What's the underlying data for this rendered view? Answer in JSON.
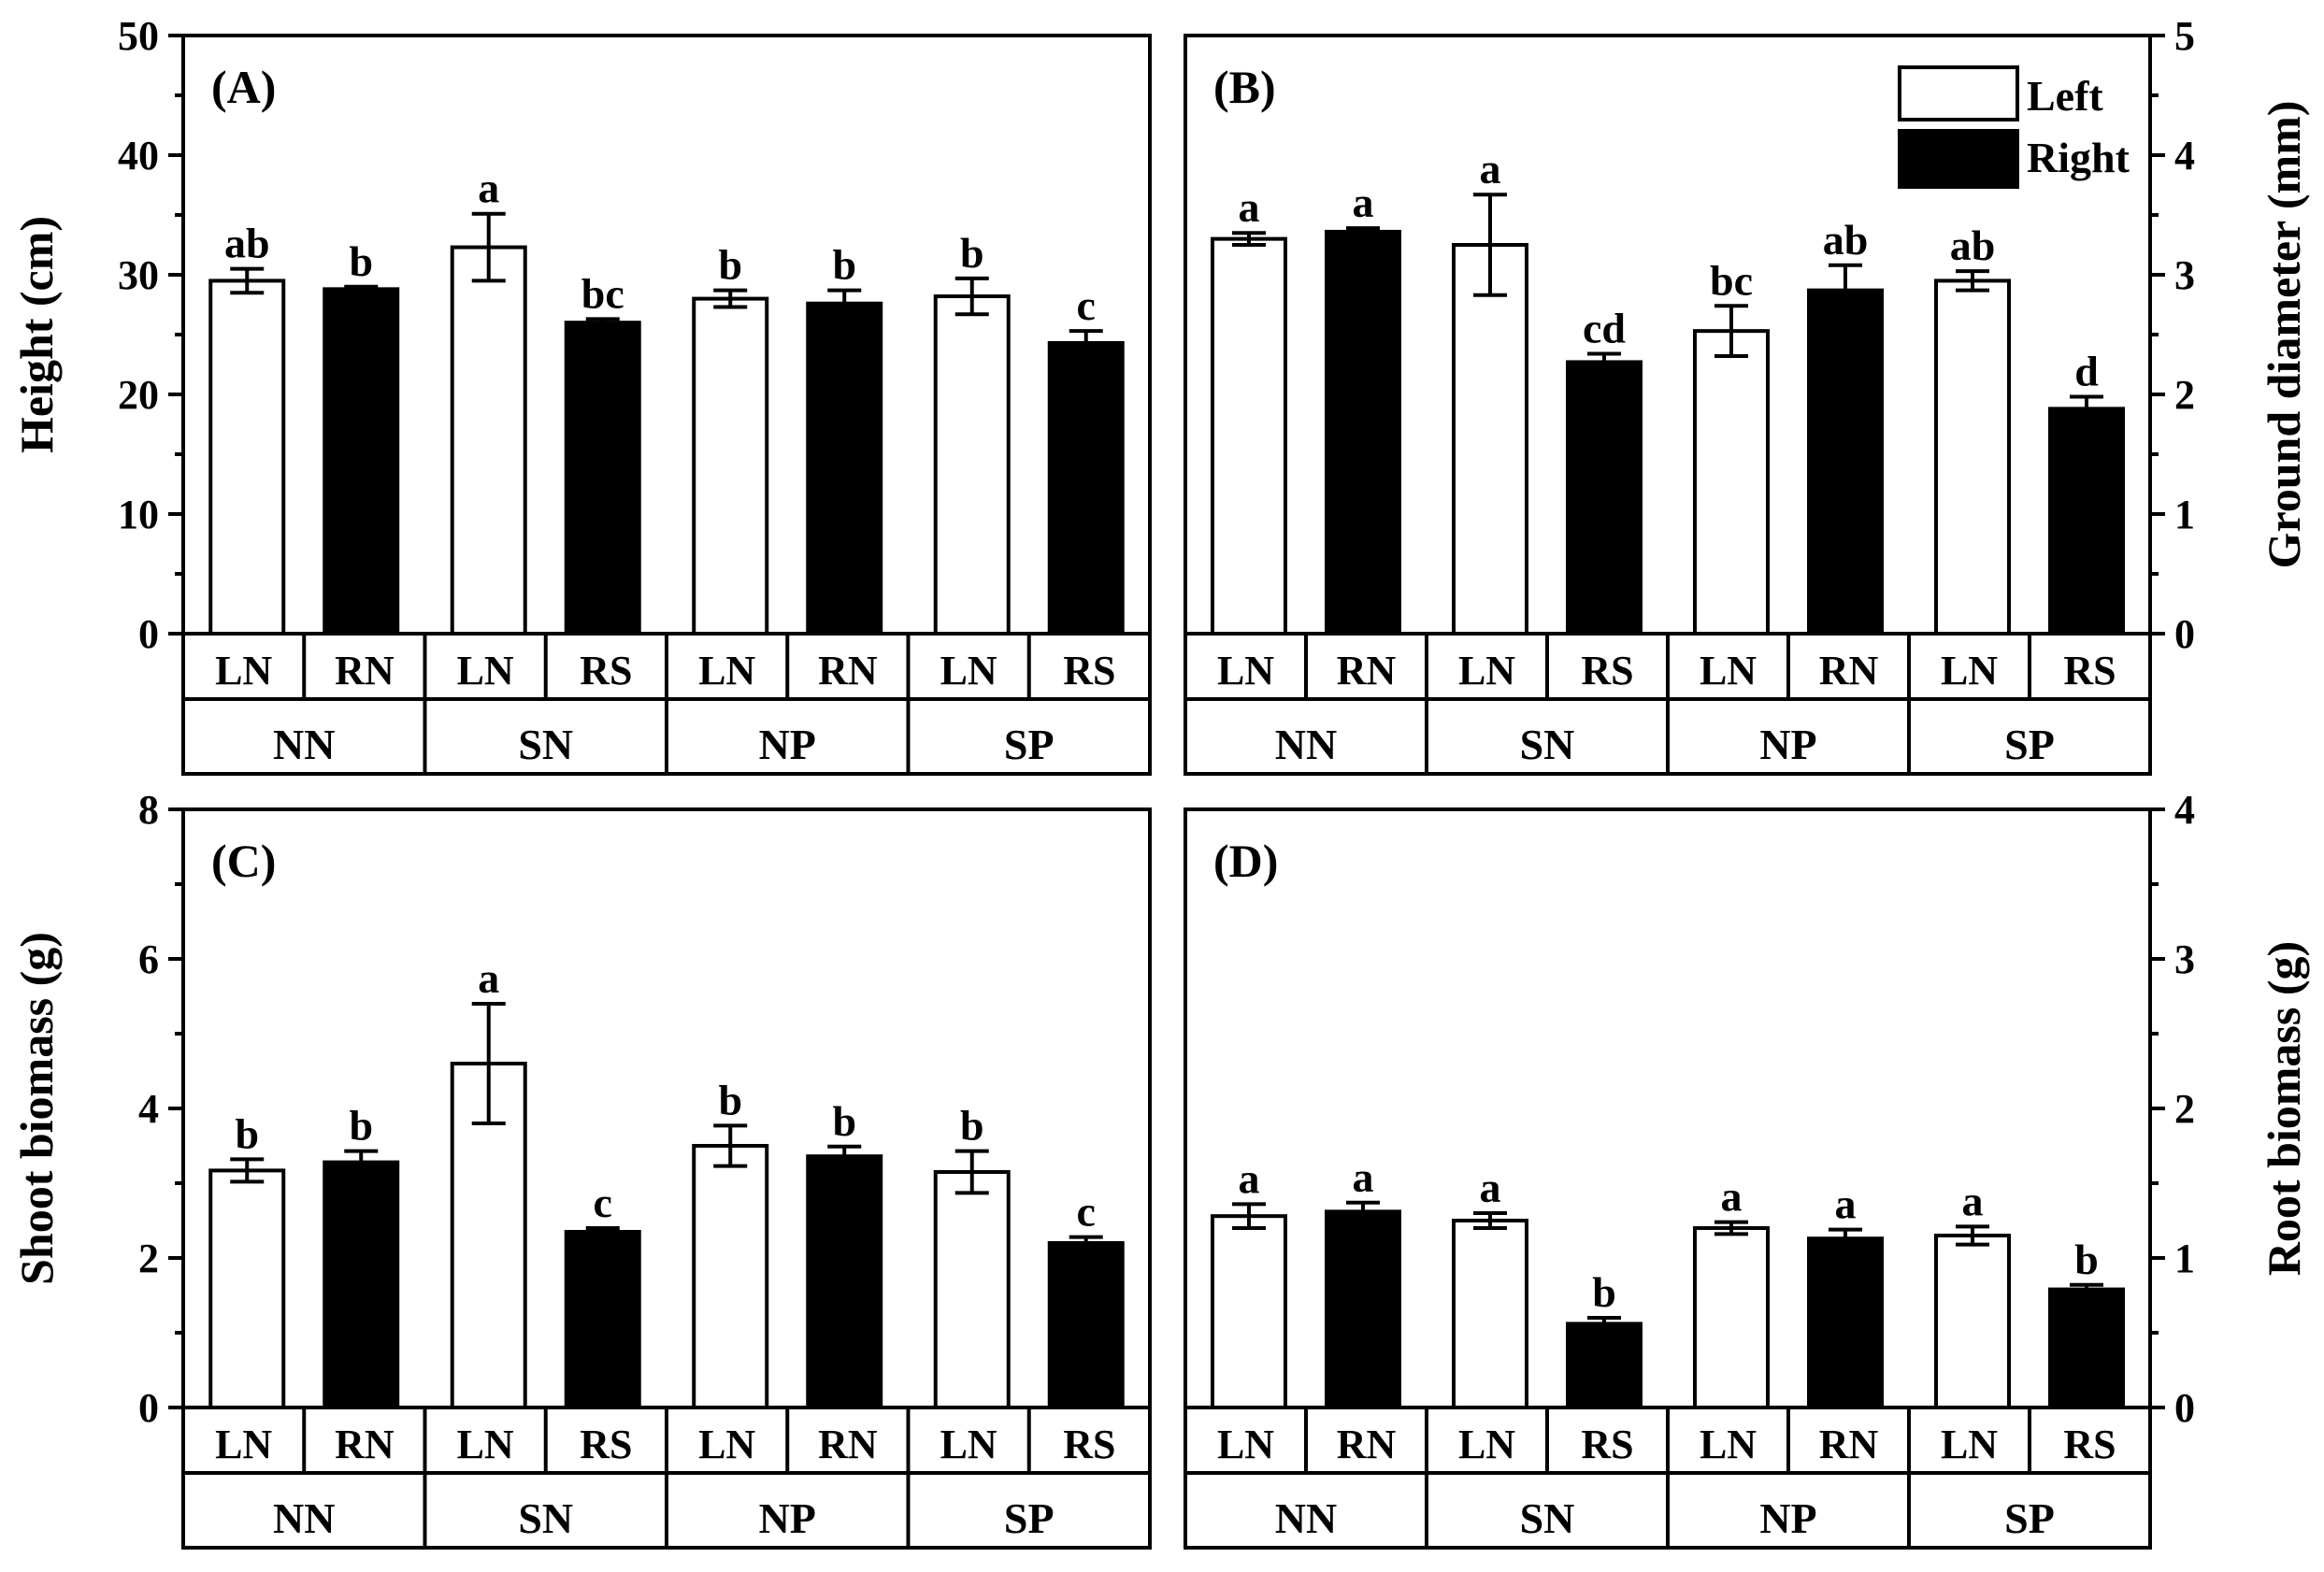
{
  "legend": {
    "left_label": "Left",
    "right_label": "Right"
  },
  "colors": {
    "left_fill": "#ffffff",
    "right_fill": "#000000",
    "stroke": "#000000"
  },
  "chart_data": [
    {
      "id": "A",
      "type": "bar",
      "panel_label": "(A)",
      "ylabel": "Height (cm)",
      "y_axis_side": "left",
      "ylim": [
        0,
        50
      ],
      "yticks": [
        "0",
        "10",
        "20",
        "30",
        "40",
        "50"
      ],
      "groups": [
        "NN",
        "SN",
        "NP",
        "SP"
      ],
      "categories": [
        "LN",
        "RN",
        "LN",
        "RS",
        "LN",
        "RN",
        "LN",
        "RS"
      ],
      "series_side": [
        "left",
        "right",
        "left",
        "right",
        "left",
        "right",
        "left",
        "right"
      ],
      "values": [
        29.5,
        28.8,
        32.3,
        26.0,
        28.0,
        27.6,
        28.2,
        24.3
      ],
      "errors": [
        1.0,
        0.2,
        2.8,
        0.3,
        0.7,
        1.1,
        1.5,
        1.0
      ],
      "letters": [
        "ab",
        "b",
        "a",
        "bc",
        "b",
        "b",
        "b",
        "c"
      ]
    },
    {
      "id": "B",
      "type": "bar",
      "panel_label": "(B)",
      "ylabel": "Ground diameter (mm)",
      "y_axis_side": "right",
      "ylim": [
        0,
        5
      ],
      "yticks": [
        "0",
        "1",
        "2",
        "3",
        "4",
        "5"
      ],
      "groups": [
        "NN",
        "SN",
        "NP",
        "SP"
      ],
      "categories": [
        "LN",
        "RN",
        "LN",
        "RS",
        "LN",
        "RN",
        "LN",
        "RS"
      ],
      "series_side": [
        "left",
        "right",
        "left",
        "right",
        "left",
        "right",
        "left",
        "right"
      ],
      "values": [
        3.3,
        3.36,
        3.25,
        2.27,
        2.53,
        2.87,
        2.95,
        1.88
      ],
      "errors": [
        0.05,
        0.03,
        0.42,
        0.07,
        0.21,
        0.21,
        0.08,
        0.1
      ],
      "letters": [
        "a",
        "a",
        "a",
        "cd",
        "bc",
        "ab",
        "ab",
        "d"
      ]
    },
    {
      "id": "C",
      "type": "bar",
      "panel_label": "(C)",
      "ylabel": "Shoot biomass (g)",
      "y_axis_side": "left",
      "ylim": [
        0,
        8
      ],
      "yticks": [
        "0",
        "2",
        "4",
        "6",
        "8"
      ],
      "groups": [
        "NN",
        "SN",
        "NP",
        "SP"
      ],
      "categories": [
        "LN",
        "RN",
        "LN",
        "RS",
        "LN",
        "RN",
        "LN",
        "RS"
      ],
      "series_side": [
        "left",
        "right",
        "left",
        "right",
        "left",
        "right",
        "left",
        "right"
      ],
      "values": [
        3.17,
        3.28,
        4.6,
        2.35,
        3.5,
        3.36,
        3.15,
        2.2
      ],
      "errors": [
        0.15,
        0.15,
        0.8,
        0.05,
        0.27,
        0.13,
        0.28,
        0.08
      ],
      "letters": [
        "b",
        "b",
        "a",
        "c",
        "b",
        "b",
        "b",
        "c"
      ]
    },
    {
      "id": "D",
      "type": "bar",
      "panel_label": "(D)",
      "ylabel": "Root biomass (g)",
      "y_axis_side": "right",
      "ylim": [
        0,
        4
      ],
      "yticks": [
        "0",
        "1",
        "2",
        "3",
        "4"
      ],
      "groups": [
        "NN",
        "SN",
        "NP",
        "SP"
      ],
      "categories": [
        "LN",
        "RN",
        "LN",
        "RS",
        "LN",
        "RN",
        "LN",
        "RS"
      ],
      "series_side": [
        "left",
        "right",
        "left",
        "right",
        "left",
        "right",
        "left",
        "right"
      ],
      "values": [
        1.28,
        1.31,
        1.25,
        0.56,
        1.2,
        1.13,
        1.15,
        0.79
      ],
      "errors": [
        0.08,
        0.06,
        0.05,
        0.04,
        0.04,
        0.06,
        0.06,
        0.03
      ],
      "letters": [
        "a",
        "a",
        "a",
        "b",
        "a",
        "a",
        "a",
        "b"
      ]
    }
  ]
}
